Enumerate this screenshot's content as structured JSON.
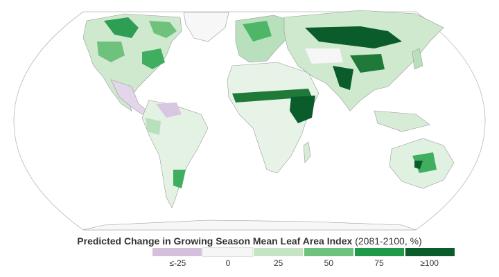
{
  "legend": {
    "title_main": "Predicted Change in Growing Season Mean Leaf Area Index",
    "title_sub": "(2081-2100, %)",
    "bins": [
      {
        "label": "≤-25",
        "color": "#d4bfdc"
      },
      {
        "label": "0",
        "color": "#f6f6f6"
      },
      {
        "label": "25",
        "color": "#c4e4c4"
      },
      {
        "label": "50",
        "color": "#6fc27b"
      },
      {
        "label": "75",
        "color": "#1f9a48"
      },
      {
        "label": "≥100",
        "color": "#0a5d2a"
      }
    ]
  },
  "colors": {
    "ocean": "#ffffff",
    "land_base": "#eef6ee",
    "border": "#8a8a8a"
  }
}
